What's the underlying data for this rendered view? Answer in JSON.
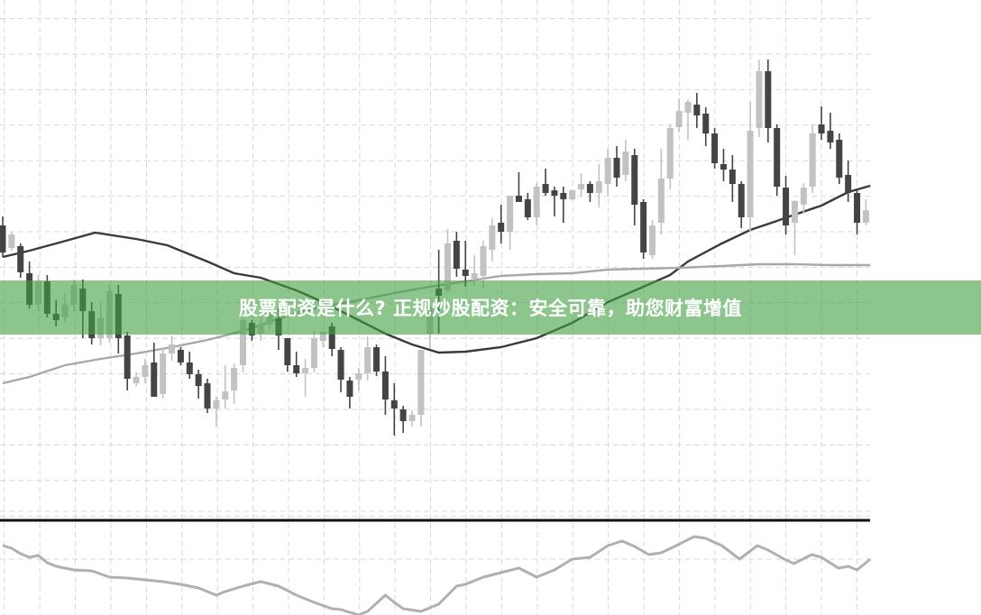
{
  "banner": {
    "title": "股票配资是什么? 正规炒股配资：安全可靠，助您财富增值"
  },
  "colors": {
    "bull_candle": "#c2c2c2",
    "bear_candle": "#444444",
    "ma_fast": "#3a3a3a",
    "ma_slow": "#a8a8a8",
    "oscillator": "#b0b0b0",
    "separator": "#111111",
    "grid": "#d8d8d8",
    "banner": "#8dc68d"
  },
  "chart_data": {
    "type": "candlestick",
    "title": "",
    "xlabel": "",
    "ylabel": "",
    "ylim": [
      2.5,
      60
    ],
    "grid": true,
    "ohlc_format": [
      "open",
      "high",
      "low",
      "close"
    ],
    "candles": [
      [
        35.0,
        36.0,
        31.5,
        32.0
      ],
      [
        32.5,
        34.3,
        32.2,
        34.0
      ],
      [
        32.7,
        33.0,
        29.2,
        29.8
      ],
      [
        29.7,
        31.0,
        25.8,
        26.2
      ],
      [
        26.2,
        29.5,
        25.5,
        28.8
      ],
      [
        28.8,
        29.5,
        24.8,
        25.2
      ],
      [
        25.2,
        26.7,
        23.8,
        24.5
      ],
      [
        24.8,
        27.5,
        24.2,
        26.2
      ],
      [
        26.2,
        29.0,
        25.5,
        28.4
      ],
      [
        28.0,
        29.0,
        22.5,
        25.5
      ],
      [
        25.5,
        26.5,
        21.8,
        22.5
      ],
      [
        22.5,
        26.5,
        21.7,
        24.7
      ],
      [
        22.5,
        28.4,
        22.0,
        27.7
      ],
      [
        27.4,
        28.4,
        20.8,
        22.5
      ],
      [
        22.8,
        23.2,
        16.7,
        18.0
      ],
      [
        17.5,
        18.7,
        17.2,
        18.2
      ],
      [
        18.2,
        20.2,
        17.5,
        19.5
      ],
      [
        19.8,
        22.0,
        16.0,
        16.0
      ],
      [
        16.3,
        21.5,
        15.8,
        20.8
      ],
      [
        20.8,
        22.8,
        20.0,
        21.8
      ],
      [
        21.2,
        21.5,
        19.5,
        19.8
      ],
      [
        19.8,
        21.0,
        18.0,
        18.5
      ],
      [
        18.5,
        19.0,
        15.8,
        17.2
      ],
      [
        17.5,
        18.0,
        14.2,
        14.7
      ],
      [
        14.7,
        16.0,
        12.7,
        15.6
      ],
      [
        15.7,
        19.5,
        14.7,
        16.6
      ],
      [
        16.7,
        19.7,
        15.2,
        19.2
      ],
      [
        19.5,
        24.7,
        18.7,
        24.5
      ],
      [
        24.2,
        24.5,
        22.2,
        22.8
      ],
      [
        23.0,
        25.0,
        22.2,
        24.0
      ],
      [
        24.0,
        26.5,
        23.5,
        25.5
      ],
      [
        24.7,
        25.8,
        21.2,
        22.8
      ],
      [
        22.5,
        22.5,
        18.8,
        19.5
      ],
      [
        19.5,
        21.0,
        18.2,
        18.6
      ],
      [
        18.6,
        20.2,
        16.0,
        19.2
      ],
      [
        19.2,
        23.3,
        18.7,
        22.5
      ],
      [
        22.2,
        23.3,
        21.5,
        23.2
      ],
      [
        23.8,
        24.2,
        20.5,
        21.3
      ],
      [
        21.2,
        21.5,
        16.5,
        17.9
      ],
      [
        17.8,
        18.2,
        14.7,
        16.0
      ],
      [
        17.9,
        19.2,
        16.7,
        18.6
      ],
      [
        18.6,
        22.7,
        17.8,
        21.5
      ],
      [
        21.5,
        21.8,
        18.3,
        18.8
      ],
      [
        18.8,
        20.5,
        14.0,
        15.7
      ],
      [
        15.6,
        17.5,
        11.7,
        14.7
      ],
      [
        14.6,
        15.0,
        12.0,
        13.3
      ],
      [
        13.3,
        14.5,
        12.7,
        14.0
      ],
      [
        14.0,
        21.2,
        12.7,
        21.2
      ],
      [
        23.0,
        26.3,
        21.3,
        26.0
      ],
      [
        28.0,
        32.3,
        23.0,
        27.2
      ],
      [
        27.8,
        34.6,
        27.5,
        33.0
      ],
      [
        33.3,
        34.3,
        29.3,
        30.2
      ],
      [
        30.1,
        33.3,
        28.2,
        29.4
      ],
      [
        29.1,
        31.7,
        28.3,
        29.7
      ],
      [
        29.4,
        33.3,
        28.0,
        32.7
      ],
      [
        32.3,
        35.8,
        31.0,
        35.0
      ],
      [
        35.3,
        37.3,
        33.0,
        34.3
      ],
      [
        34.3,
        38.3,
        32.3,
        38.3
      ],
      [
        38.3,
        40.9,
        37.6,
        37.6
      ],
      [
        37.9,
        38.6,
        35.6,
        35.9
      ],
      [
        35.9,
        39.7,
        35.0,
        39.3
      ],
      [
        39.6,
        41.3,
        38.3,
        38.6
      ],
      [
        38.9,
        39.3,
        36.0,
        38.3
      ],
      [
        38.6,
        39.3,
        35.3,
        37.9
      ],
      [
        37.9,
        39.0,
        37.8,
        38.9
      ],
      [
        39.0,
        40.8,
        38.3,
        39.6
      ],
      [
        39.6,
        39.9,
        37.6,
        38.6
      ],
      [
        38.6,
        41.8,
        37.0,
        39.9
      ],
      [
        39.6,
        43.5,
        38.3,
        42.5
      ],
      [
        42.5,
        43.8,
        39.3,
        40.3
      ],
      [
        40.6,
        44.5,
        39.9,
        43.2
      ],
      [
        42.8,
        43.5,
        35.0,
        37.3
      ],
      [
        37.6,
        37.9,
        31.3,
        32.0
      ],
      [
        31.7,
        35.6,
        31.3,
        35.0
      ],
      [
        35.3,
        43.5,
        34.0,
        40.2
      ],
      [
        40.2,
        46.2,
        39.0,
        45.8
      ],
      [
        45.9,
        49.1,
        45.3,
        47.7
      ],
      [
        47.5,
        49.0,
        44.5,
        48.7
      ],
      [
        48.4,
        49.7,
        45.8,
        47.2
      ],
      [
        47.4,
        48.1,
        43.8,
        45.2
      ],
      [
        45.2,
        45.8,
        41.3,
        41.9
      ],
      [
        41.8,
        43.5,
        39.9,
        41.2
      ],
      [
        41.2,
        42.8,
        37.6,
        39.6
      ],
      [
        39.6,
        39.9,
        34.7,
        35.9
      ],
      [
        35.9,
        48.7,
        34.3,
        45.5
      ],
      [
        45.8,
        53.4,
        44.8,
        52.1
      ],
      [
        52.1,
        53.4,
        44.2,
        45.8
      ],
      [
        45.8,
        46.2,
        38.3,
        39.3
      ],
      [
        39.2,
        40.5,
        34.0,
        35.0
      ],
      [
        35.3,
        37.8,
        31.7,
        37.7
      ],
      [
        37.3,
        39.7,
        36.3,
        39.2
      ],
      [
        39.3,
        46.2,
        38.6,
        45.2
      ],
      [
        46.2,
        48.2,
        44.5,
        45.2
      ],
      [
        45.5,
        47.5,
        43.5,
        44.2
      ],
      [
        44.5,
        45.2,
        39.6,
        40.3
      ],
      [
        40.6,
        42.2,
        37.6,
        38.6
      ],
      [
        38.6,
        39.0,
        34.0,
        35.3
      ],
      [
        35.3,
        37.9,
        35.0,
        36.7
      ]
    ],
    "moving_averages": [
      {
        "style": "dark",
        "points": [
          [
            0,
            31.5
          ],
          [
            3,
            32.2
          ],
          [
            6,
            33.0
          ],
          [
            10.4,
            34.2
          ],
          [
            15,
            33.5
          ],
          [
            18.5,
            32.8
          ],
          [
            23,
            31.0
          ],
          [
            26,
            29.7
          ],
          [
            29,
            29.2
          ],
          [
            33,
            27.8
          ],
          [
            36,
            26.5
          ],
          [
            40,
            24.5
          ],
          [
            43,
            23.0
          ],
          [
            46,
            21.8
          ],
          [
            49,
            20.9
          ],
          [
            52,
            21.0
          ],
          [
            56,
            21.5
          ],
          [
            60,
            22.5
          ],
          [
            64,
            24.2
          ],
          [
            68,
            26.5
          ],
          [
            72,
            28.2
          ],
          [
            75,
            29.5
          ],
          [
            77,
            31.0
          ],
          [
            80.8,
            33.0
          ],
          [
            84,
            34.5
          ],
          [
            87,
            35.5
          ],
          [
            89,
            36.2
          ],
          [
            92,
            37.2
          ],
          [
            95,
            38.7
          ],
          [
            97.5,
            39.4
          ]
        ]
      },
      {
        "style": "light",
        "points": [
          [
            0,
            17.5
          ],
          [
            3,
            18.2
          ],
          [
            7,
            19.5
          ],
          [
            11,
            20.2
          ],
          [
            15,
            20.8
          ],
          [
            19,
            21.5
          ],
          [
            23,
            22.3
          ],
          [
            27,
            23.3
          ],
          [
            30,
            24.3
          ],
          [
            33,
            25.3
          ],
          [
            36,
            26.0
          ],
          [
            40,
            26.7
          ],
          [
            44,
            27.5
          ],
          [
            48,
            28.2
          ],
          [
            52,
            28.8
          ],
          [
            56,
            29.4
          ],
          [
            60,
            29.6
          ],
          [
            64,
            29.7
          ],
          [
            68,
            30.1
          ],
          [
            72,
            30.2
          ],
          [
            76,
            30.3
          ],
          [
            80.8,
            30.5
          ],
          [
            85,
            30.7
          ],
          [
            89,
            30.7
          ],
          [
            93,
            30.6
          ],
          [
            97.5,
            30.6
          ]
        ]
      }
    ],
    "oscillator": {
      "ylim": [
        0,
        110
      ],
      "points": [
        [
          0,
          85
        ],
        [
          1,
          82
        ],
        [
          2,
          76
        ],
        [
          3,
          72
        ],
        [
          4,
          74
        ],
        [
          5,
          66
        ],
        [
          6,
          62
        ],
        [
          8,
          58
        ],
        [
          10,
          57
        ],
        [
          12,
          50
        ],
        [
          14,
          49
        ],
        [
          16,
          47
        ],
        [
          18,
          45
        ],
        [
          20,
          42
        ],
        [
          22,
          38
        ],
        [
          24,
          30
        ],
        [
          25,
          34
        ],
        [
          27,
          40
        ],
        [
          29,
          45
        ],
        [
          31,
          40
        ],
        [
          33,
          30
        ],
        [
          35,
          22
        ],
        [
          37,
          15
        ],
        [
          38,
          14
        ],
        [
          40,
          8
        ],
        [
          41,
          12
        ],
        [
          43,
          30
        ],
        [
          44,
          22
        ],
        [
          45,
          15
        ],
        [
          47,
          12
        ],
        [
          49,
          20
        ],
        [
          51,
          40
        ],
        [
          52,
          42
        ],
        [
          54,
          50
        ],
        [
          56,
          55
        ],
        [
          58,
          60
        ],
        [
          60,
          50
        ],
        [
          62,
          58
        ],
        [
          64,
          70
        ],
        [
          66,
          72
        ],
        [
          68,
          85
        ],
        [
          69.6,
          90
        ],
        [
          71,
          84
        ],
        [
          72.6,
          75
        ],
        [
          74,
          77
        ],
        [
          75.7,
          85
        ],
        [
          77.7,
          95
        ],
        [
          79,
          93
        ],
        [
          80.8,
          85
        ],
        [
          82.8,
          70
        ],
        [
          84.8,
          85
        ],
        [
          86,
          80
        ],
        [
          87.8,
          70
        ],
        [
          88.9,
          65
        ],
        [
          90.9,
          75
        ],
        [
          92,
          72
        ],
        [
          93.9,
          60
        ],
        [
          95,
          62
        ],
        [
          96,
          58
        ],
        [
          97.5,
          70
        ]
      ]
    }
  }
}
